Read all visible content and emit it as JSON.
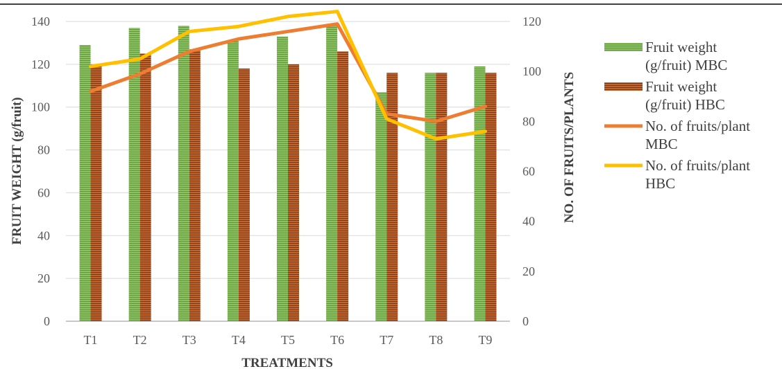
{
  "chart_data": {
    "type": "bar",
    "title": "",
    "xlabel": "TREATMENTS",
    "ylabel": "FRUIT WEIGHT (g/fruit)",
    "y2label": "NO. OF FRUITS/PLANTS",
    "categories": [
      "T1",
      "T2",
      "T3",
      "T4",
      "T5",
      "T6",
      "T7",
      "T8",
      "T9"
    ],
    "ylim": [
      0,
      140
    ],
    "y2lim": [
      0,
      120
    ],
    "yticks": [
      "0",
      "20",
      "40",
      "60",
      "80",
      "100",
      "120",
      "140"
    ],
    "y2ticks": [
      "0",
      "20",
      "40",
      "60",
      "80",
      "100",
      "120"
    ],
    "grid": true,
    "legend_position": "right",
    "bar_series": [
      {
        "name": "Fruit weight (g/fruit) MBC",
        "legend_lines": [
          "Fruit weight",
          "(g/fruit) MBC"
        ],
        "color": "#70AD47",
        "values": [
          129,
          137,
          138,
          131,
          133,
          138,
          107,
          116,
          119
        ]
      },
      {
        "name": "Fruit weight (g/fruit) HBC",
        "legend_lines": [
          "Fruit weight",
          "(g/fruit) HBC"
        ],
        "color": "#A5501E",
        "values": [
          120,
          125,
          127,
          118,
          120,
          126,
          116,
          116,
          116
        ]
      }
    ],
    "line_series": [
      {
        "name": "No. of fruits/plant MBC",
        "legend_lines": [
          "No. of fruits/plant",
          "MBC"
        ],
        "color": "#ED7D31",
        "axis": "right",
        "values": [
          92,
          99,
          108,
          113,
          116,
          119,
          83,
          80,
          86
        ]
      },
      {
        "name": "No. of fruits/plant HBC",
        "legend_lines": [
          "No. of fruits/plant",
          "HBC"
        ],
        "color": "#FFC000",
        "axis": "right",
        "values": [
          102,
          105,
          116,
          118,
          122,
          124,
          81,
          73,
          76
        ]
      }
    ]
  }
}
